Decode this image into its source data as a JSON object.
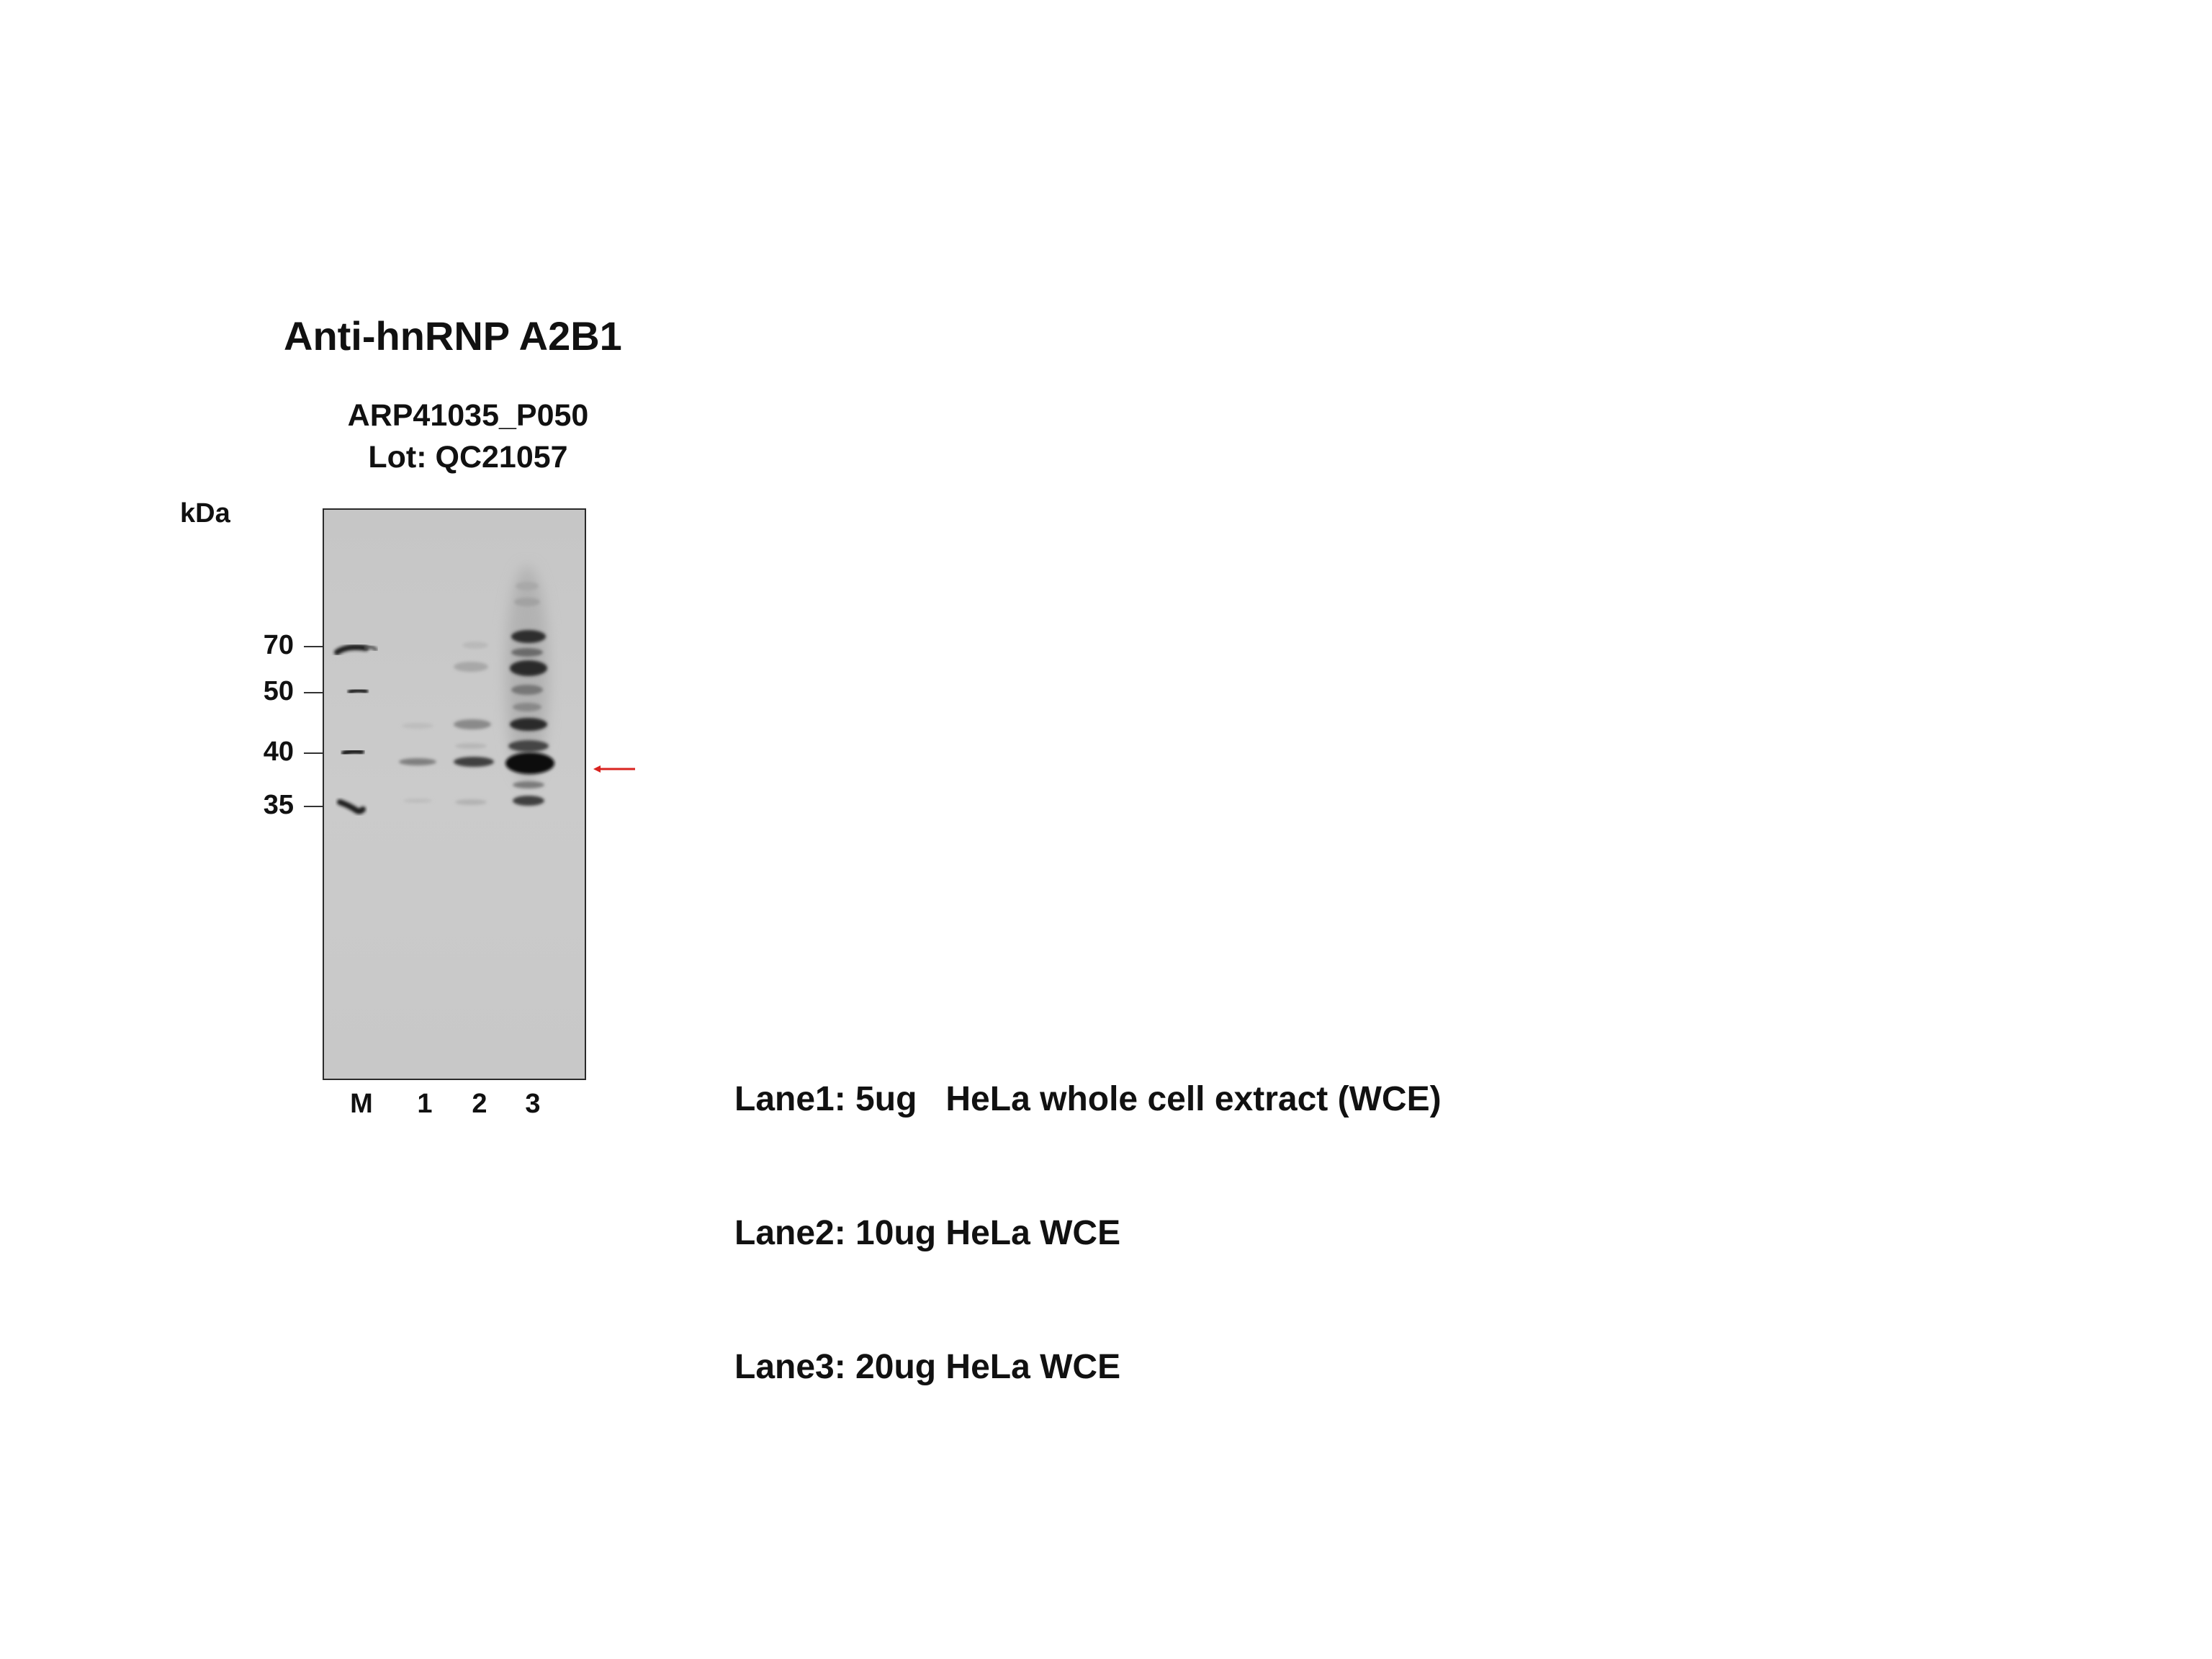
{
  "title": "Anti-hnRNP A2B1",
  "catalog": "ARP41035_P050",
  "lot": "Lot: QC21057",
  "unit_label": "kDa",
  "markers": [
    {
      "label": "70",
      "kda": 70
    },
    {
      "label": "50",
      "kda": 50
    },
    {
      "label": "40",
      "kda": 40
    },
    {
      "label": "35",
      "kda": 35
    }
  ],
  "lanes": [
    "M",
    "1",
    "2",
    "3"
  ],
  "legend": [
    "Lane1: 5ug   HeLa whole cell extract (WCE)",
    "Lane2: 10ug HeLa WCE",
    "Lane3: 20ug HeLa WCE"
  ],
  "colors": {
    "membrane": "#c9c9c9",
    "arrow": "#d9231f",
    "text": "#111111"
  },
  "target_arrow_icon": "left-arrow-icon"
}
